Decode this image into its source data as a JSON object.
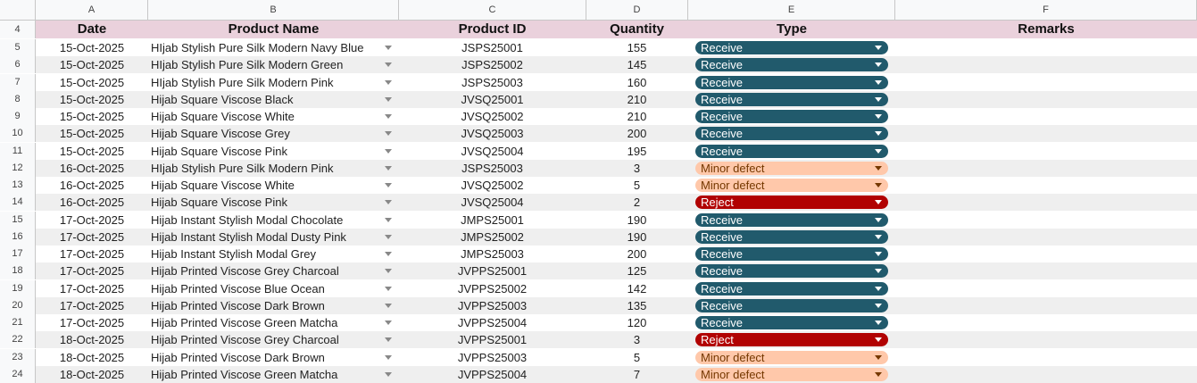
{
  "column_letters": [
    "A",
    "B",
    "C",
    "D",
    "E",
    "F"
  ],
  "header": {
    "row_number": "4",
    "date": "Date",
    "product_name": "Product Name",
    "product_id": "Product ID",
    "quantity": "Quantity",
    "type": "Type",
    "remarks": "Remarks"
  },
  "type_colors": {
    "Receive": {
      "bg": "#215a6c",
      "fg": "#ffffff"
    },
    "Minor defect": {
      "bg": "#ffc8aa",
      "fg": "#753800"
    },
    "Reject": {
      "bg": "#b10202",
      "fg": "#ffffff"
    }
  },
  "header_color": "#ead1dc",
  "rows": [
    {
      "n": "5",
      "date": "15-Oct-2025",
      "name": "HIjab Stylish Pure Silk Modern Navy Blue",
      "id": "JSPS25001",
      "qty": "155",
      "type": "Receive"
    },
    {
      "n": "6",
      "date": "15-Oct-2025",
      "name": "HIjab Stylish Pure Silk Modern Green",
      "id": "JSPS25002",
      "qty": "145",
      "type": "Receive"
    },
    {
      "n": "7",
      "date": "15-Oct-2025",
      "name": "HIjab Stylish Pure Silk Modern Pink",
      "id": "JSPS25003",
      "qty": "160",
      "type": "Receive"
    },
    {
      "n": "8",
      "date": "15-Oct-2025",
      "name": "Hijab Square Viscose Black",
      "id": "JVSQ25001",
      "qty": "210",
      "type": "Receive"
    },
    {
      "n": "9",
      "date": "15-Oct-2025",
      "name": "Hijab Square Viscose White",
      "id": "JVSQ25002",
      "qty": "210",
      "type": "Receive"
    },
    {
      "n": "10",
      "date": "15-Oct-2025",
      "name": "Hijab Square Viscose Grey",
      "id": "JVSQ25003",
      "qty": "200",
      "type": "Receive"
    },
    {
      "n": "11",
      "date": "15-Oct-2025",
      "name": "Hijab Square Viscose Pink",
      "id": "JVSQ25004",
      "qty": "195",
      "type": "Receive"
    },
    {
      "n": "12",
      "date": "16-Oct-2025",
      "name": "HIjab Stylish Pure Silk Modern Pink",
      "id": "JSPS25003",
      "qty": "3",
      "type": "Minor defect"
    },
    {
      "n": "13",
      "date": "16-Oct-2025",
      "name": "Hijab Square Viscose White",
      "id": "JVSQ25002",
      "qty": "5",
      "type": "Minor defect"
    },
    {
      "n": "14",
      "date": "16-Oct-2025",
      "name": "Hijab Square Viscose Pink",
      "id": "JVSQ25004",
      "qty": "2",
      "type": "Reject"
    },
    {
      "n": "15",
      "date": "17-Oct-2025",
      "name": "Hijab Instant Stylish Modal Chocolate",
      "id": "JMPS25001",
      "qty": "190",
      "type": "Receive"
    },
    {
      "n": "16",
      "date": "17-Oct-2025",
      "name": "Hijab Instant Stylish Modal Dusty Pink",
      "id": "JMPS25002",
      "qty": "190",
      "type": "Receive"
    },
    {
      "n": "17",
      "date": "17-Oct-2025",
      "name": "Hijab Instant Stylish Modal Grey",
      "id": "JMPS25003",
      "qty": "200",
      "type": "Receive"
    },
    {
      "n": "18",
      "date": "17-Oct-2025",
      "name": "Hijab Printed Viscose Grey Charcoal",
      "id": "JVPPS25001",
      "qty": "125",
      "type": "Receive"
    },
    {
      "n": "19",
      "date": "17-Oct-2025",
      "name": "Hijab Printed Viscose Blue Ocean",
      "id": "JVPPS25002",
      "qty": "142",
      "type": "Receive"
    },
    {
      "n": "20",
      "date": "17-Oct-2025",
      "name": "Hijab Printed Viscose Dark Brown",
      "id": "JVPPS25003",
      "qty": "135",
      "type": "Receive"
    },
    {
      "n": "21",
      "date": "17-Oct-2025",
      "name": "Hijab Printed Viscose Green Matcha",
      "id": "JVPPS25004",
      "qty": "120",
      "type": "Receive"
    },
    {
      "n": "22",
      "date": "18-Oct-2025",
      "name": "Hijab Printed Viscose Grey Charcoal",
      "id": "JVPPS25001",
      "qty": "3",
      "type": "Reject"
    },
    {
      "n": "23",
      "date": "18-Oct-2025",
      "name": "Hijab Printed Viscose Dark Brown",
      "id": "JVPPS25003",
      "qty": "5",
      "type": "Minor defect"
    },
    {
      "n": "24",
      "date": "18-Oct-2025",
      "name": "Hijab Printed Viscose Green Matcha",
      "id": "JVPPS25004",
      "qty": "7",
      "type": "Minor defect"
    }
  ]
}
